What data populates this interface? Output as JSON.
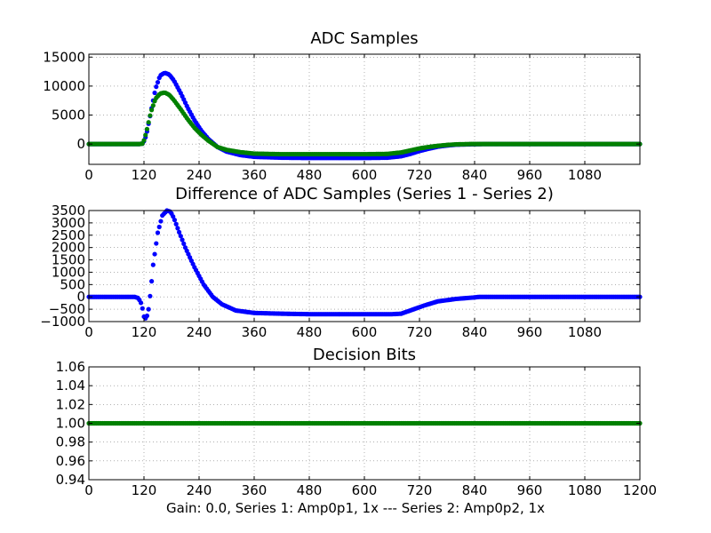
{
  "figure": {
    "xlabel": "Gain: 0.0, Series 1: Amp0p1, 1x --- Series 2: Amp0p2, 1x"
  },
  "colors": {
    "series1": "#0000ff",
    "series2": "#008000",
    "axes": "#000000",
    "grid": "#808080"
  },
  "chart_data": [
    {
      "type": "scatter",
      "title": "ADC Samples",
      "grid": true,
      "xlim": [
        0,
        1200
      ],
      "ylim": [
        -3500,
        15500
      ],
      "xticks": [
        0,
        120,
        240,
        360,
        480,
        600,
        720,
        840,
        960,
        1080
      ],
      "xtick_labels": [
        "0",
        "120",
        "240",
        "360",
        "480",
        "600",
        "720",
        "840",
        "960",
        "1080"
      ],
      "yticks": [
        0,
        5000,
        10000,
        15000
      ],
      "ytick_labels": [
        "0",
        "5000",
        "10000",
        "15000"
      ],
      "series": [
        {
          "color": "#0000ff",
          "x": [
            0,
            100,
            110,
            118,
            125,
            135,
            145,
            155,
            165,
            175,
            185,
            200,
            215,
            230,
            245,
            260,
            280,
            300,
            330,
            360,
            420,
            480,
            540,
            600,
            650,
            680,
            700,
            720,
            740,
            760,
            780,
            800,
            830,
            860,
            900,
            1000,
            1100,
            1200
          ],
          "y": [
            0,
            0,
            0,
            100,
            1500,
            5500,
            9500,
            11800,
            12300,
            12000,
            11000,
            8800,
            6300,
            4100,
            2300,
            900,
            -500,
            -1300,
            -1900,
            -2200,
            -2350,
            -2400,
            -2400,
            -2400,
            -2350,
            -2100,
            -1700,
            -1200,
            -800,
            -450,
            -250,
            -100,
            -50,
            0,
            0,
            0,
            0,
            0
          ]
        },
        {
          "color": "#008000",
          "x": [
            0,
            100,
            110,
            118,
            125,
            135,
            145,
            155,
            165,
            175,
            185,
            200,
            215,
            230,
            245,
            260,
            280,
            300,
            330,
            360,
            420,
            480,
            540,
            600,
            650,
            680,
            700,
            720,
            740,
            760,
            780,
            800,
            830,
            860,
            900,
            1000,
            1100,
            1200
          ],
          "y": [
            0,
            0,
            0,
            100,
            2000,
            5500,
            7800,
            8700,
            8900,
            8500,
            7600,
            6000,
            4300,
            2800,
            1600,
            600,
            -500,
            -1000,
            -1400,
            -1650,
            -1750,
            -1750,
            -1750,
            -1750,
            -1700,
            -1450,
            -1100,
            -750,
            -500,
            -300,
            -150,
            -50,
            0,
            0,
            0,
            0,
            0,
            0
          ]
        }
      ]
    },
    {
      "type": "scatter",
      "title": "Difference of ADC Samples (Series 1 - Series 2)",
      "grid": true,
      "xlim": [
        0,
        1200
      ],
      "ylim": [
        -1000,
        3500
      ],
      "xticks": [
        0,
        120,
        240,
        360,
        480,
        600,
        720,
        840,
        960,
        1080
      ],
      "xtick_labels": [
        "0",
        "120",
        "240",
        "360",
        "480",
        "600",
        "720",
        "840",
        "960",
        "1080"
      ],
      "yticks": [
        -1000,
        -500,
        0,
        500,
        1000,
        1500,
        2000,
        2500,
        3000,
        3500
      ],
      "ytick_labels": [
        "−1000",
        "−500",
        "0",
        "500",
        "1000",
        "1500",
        "2000",
        "2500",
        "3000",
        "3500"
      ],
      "series": [
        {
          "color": "#0000ff",
          "x": [
            0,
            100,
            108,
            115,
            120,
            125,
            130,
            135,
            140,
            150,
            160,
            170,
            178,
            185,
            195,
            210,
            230,
            250,
            270,
            290,
            320,
            360,
            420,
            480,
            540,
            600,
            660,
            680,
            700,
            730,
            760,
            800,
            840,
            850,
            900,
            1000,
            1100,
            1200
          ],
          "y": [
            0,
            0,
            -50,
            -300,
            -800,
            -900,
            -500,
            300,
            1300,
            2600,
            3300,
            3500,
            3450,
            3200,
            2700,
            2000,
            1200,
            500,
            0,
            -300,
            -550,
            -650,
            -680,
            -700,
            -700,
            -700,
            -700,
            -680,
            -550,
            -350,
            -180,
            -80,
            -20,
            0,
            0,
            0,
            0,
            0
          ]
        }
      ]
    },
    {
      "type": "scatter",
      "title": "Decision Bits",
      "grid": true,
      "xlim": [
        0,
        1200
      ],
      "ylim": [
        0.94,
        1.06
      ],
      "xticks": [
        0,
        120,
        240,
        360,
        480,
        600,
        720,
        840,
        960,
        1080,
        1200
      ],
      "xtick_labels": [
        "0",
        "120",
        "240",
        "360",
        "480",
        "600",
        "720",
        "840",
        "960",
        "1080",
        "1200"
      ],
      "yticks": [
        0.94,
        0.96,
        0.98,
        1.0,
        1.02,
        1.04,
        1.06
      ],
      "ytick_labels": [
        "0.94",
        "0.96",
        "0.98",
        "1.00",
        "1.02",
        "1.04",
        "1.06"
      ],
      "series": [
        {
          "color": "#008000",
          "x": [
            0,
            1200
          ],
          "y": [
            1.0,
            1.0
          ]
        }
      ]
    }
  ]
}
